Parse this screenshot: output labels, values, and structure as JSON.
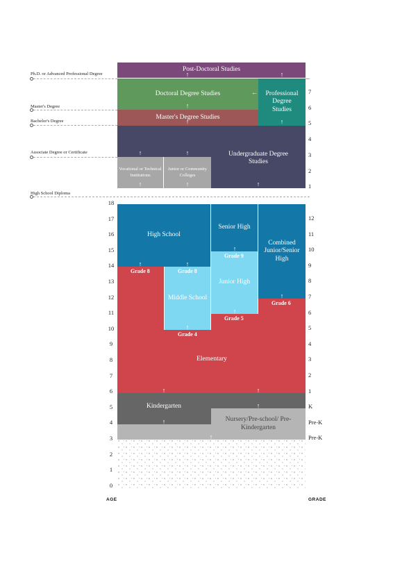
{
  "levels": {
    "phd": "Ph.D. or Advanced Professional Degree",
    "masters": "Master's Degree",
    "bachelors": "Bachelor's Degree",
    "associate": "Associate Degree or Certificate",
    "highschool": "High School Diploma"
  },
  "blocks": {
    "postdoc": "Post-Doctoral Studies",
    "doctoral": "Doctoral Degree Studies",
    "professional": "Professional Degree Studies",
    "masters": "Master's Degree Studies",
    "undergrad": "Undergraduate Degree Studies",
    "vocational": "Vocational or Technical Institutions",
    "junior_college": "Junior or Community Colleges",
    "high_school": "High School",
    "senior_high": "Senior High",
    "combined": "Combined Junior/Senior High",
    "junior_high": "Junior High",
    "middle_school": "Middle School",
    "elementary": "Elementary",
    "kindergarten": "Kindergarten",
    "nursery": "Nursery/Pre-school/ Pre-Kindergarten"
  },
  "grade_tags": {
    "g8a": "Grade 8",
    "g8b": "Grade 8",
    "g9": "Grade 9",
    "g6": "Grade 6",
    "g5": "Grade 5",
    "g4": "Grade 4"
  },
  "age_ticks": [
    "18",
    "17",
    "16",
    "15",
    "14",
    "13",
    "12",
    "11",
    "10",
    "9",
    "8",
    "7",
    "6",
    "5",
    "4",
    "3",
    "2",
    "1",
    "0"
  ],
  "grade_ticks_upper": [
    "7",
    "6",
    "5",
    "4",
    "3",
    "2",
    "1"
  ],
  "grade_ticks_lower": [
    "12",
    "11",
    "10",
    "9",
    "8",
    "7",
    "6",
    "5",
    "4",
    "3",
    "2",
    "1",
    "K",
    "Pre-K",
    "Pre-K"
  ],
  "axis": {
    "age": "AGE",
    "grade": "GRADE"
  },
  "colors": {
    "postdoc": "#7b4a7a",
    "doctoral": "#5f9a5c",
    "professional": "#1f8a7e",
    "masters": "#9e5757",
    "undergrad": "#474766",
    "vocational": "#a7a7a7",
    "high_school": "#1378a8",
    "junior_high": "#7fd8f2",
    "elementary": "#d0454c",
    "kindergarten": "#666666",
    "nursery": "#b5b5b5"
  }
}
